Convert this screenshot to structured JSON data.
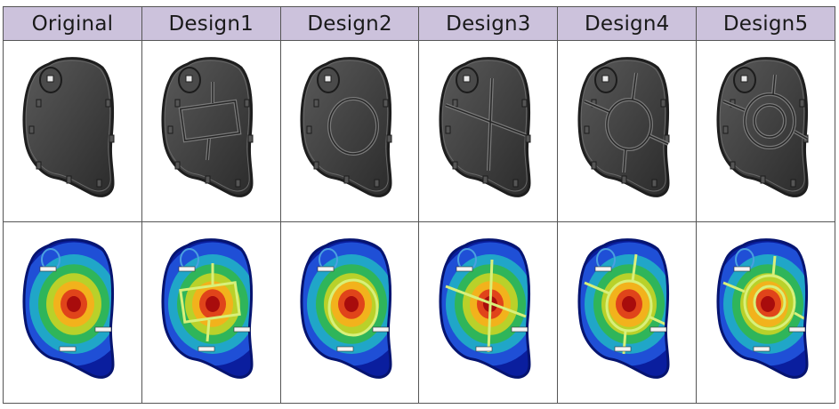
{
  "columns": [
    {
      "id": "original",
      "label": "Original",
      "feature": "none"
    },
    {
      "id": "design1",
      "label": "Design1",
      "feature": "rect"
    },
    {
      "id": "design2",
      "label": "Design2",
      "feature": "circle"
    },
    {
      "id": "design3",
      "label": "Design3",
      "feature": "cross"
    },
    {
      "id": "design4",
      "label": "Design4",
      "feature": "circle-cross"
    },
    {
      "id": "design5",
      "label": "Design5",
      "feature": "double-ring"
    }
  ],
  "colors": {
    "header_bg": "#ccc2dc",
    "part_fill": "#3d3d3d",
    "part_edge": "#1e1e1e",
    "contour": [
      "#0a1e9e",
      "#1f4fd6",
      "#20a6c8",
      "#2fb55a",
      "#b9d12a",
      "#f2b21c",
      "#e0441a",
      "#a80c0c"
    ]
  }
}
